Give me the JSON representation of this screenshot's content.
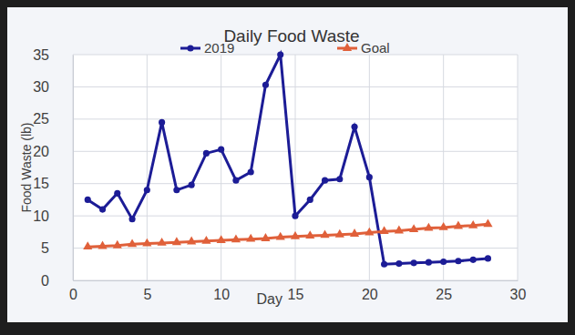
{
  "chart_data": {
    "type": "line",
    "title": "Daily Food Waste",
    "x_label": "Day",
    "y_label": "Food Waste (lb)",
    "x": [
      1,
      2,
      3,
      4,
      5,
      6,
      7,
      8,
      9,
      10,
      11,
      12,
      13,
      14,
      15,
      16,
      17,
      18,
      19,
      20,
      21,
      22,
      23,
      24,
      25,
      26,
      27,
      28
    ],
    "series": [
      {
        "name": "2019",
        "color": "#1c1c96",
        "marker": "circle",
        "line_style": "solid",
        "values": [
          12.5,
          11,
          13.5,
          9.5,
          14,
          24.5,
          14,
          14.8,
          19.7,
          20.3,
          15.5,
          16.8,
          30.3,
          35,
          10,
          12.5,
          15.5,
          15.7,
          23.8,
          16,
          2.5,
          2.6,
          2.7,
          2.8,
          2.9,
          3.0,
          3.2,
          3.4
        ]
      },
      {
        "name": "Goal",
        "color": "#e0603a",
        "marker": "triangle",
        "line_style": "solid",
        "values": [
          5.2,
          5.3,
          5.4,
          5.6,
          5.7,
          5.8,
          5.9,
          6.0,
          6.1,
          6.2,
          6.3,
          6.4,
          6.5,
          6.7,
          6.8,
          6.9,
          7.0,
          7.1,
          7.2,
          7.4,
          7.6,
          7.7,
          7.9,
          8.1,
          8.2,
          8.4,
          8.5,
          8.7
        ]
      }
    ],
    "xlim": [
      0,
      30
    ],
    "xticks": [
      0,
      5,
      10,
      15,
      20,
      25,
      30
    ],
    "ylim": [
      0,
      35
    ],
    "yticks": [
      0,
      5,
      10,
      15,
      20,
      25,
      30,
      35
    ],
    "grid": true,
    "legend": "top"
  }
}
